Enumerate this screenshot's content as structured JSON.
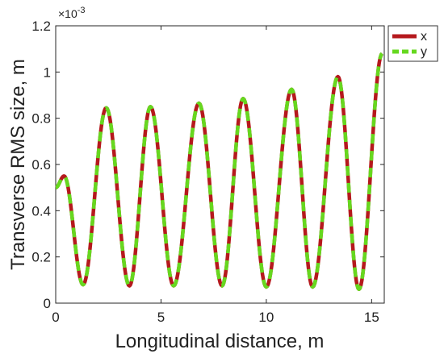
{
  "chart_data": {
    "type": "line",
    "title": "",
    "xlabel": "Longitudinal distance, m",
    "ylabel": "Transverse RMS size, m",
    "y_exponent_label": "×10",
    "y_exponent_power": "-3",
    "xlim": [
      0,
      15.6
    ],
    "ylim": [
      0,
      1.2
    ],
    "x_ticks": [
      0,
      5,
      10,
      15
    ],
    "x_tick_labels": [
      "0",
      "5",
      "10",
      "15"
    ],
    "y_ticks": [
      0,
      0.2,
      0.4,
      0.6,
      0.8,
      1.0,
      1.2
    ],
    "y_tick_labels": [
      "0",
      "0.2",
      "0.4",
      "0.6",
      "0.8",
      "1",
      "1.2"
    ],
    "grid": false,
    "legend_position": "top-right-outside",
    "series": [
      {
        "name": "x",
        "color": "#b5191d",
        "style": "solid",
        "x": [
          0,
          0.4,
          1.3,
          2.4,
          3.5,
          4.5,
          5.6,
          6.8,
          7.9,
          8.9,
          10.0,
          11.2,
          12.2,
          13.4,
          14.4,
          15.5
        ],
        "y": [
          0.5,
          0.55,
          0.08,
          0.845,
          0.075,
          0.85,
          0.075,
          0.865,
          0.075,
          0.885,
          0.07,
          0.925,
          0.07,
          0.98,
          0.06,
          1.08
        ]
      },
      {
        "name": "y",
        "color": "#66d81f",
        "style": "dashed",
        "x": [
          0,
          0.4,
          1.3,
          2.4,
          3.5,
          4.5,
          5.6,
          6.8,
          7.9,
          8.9,
          10.0,
          11.2,
          12.2,
          13.4,
          14.4,
          15.5
        ],
        "y": [
          0.5,
          0.55,
          0.08,
          0.845,
          0.075,
          0.85,
          0.075,
          0.865,
          0.075,
          0.885,
          0.07,
          0.925,
          0.07,
          0.98,
          0.06,
          1.08
        ]
      }
    ]
  }
}
